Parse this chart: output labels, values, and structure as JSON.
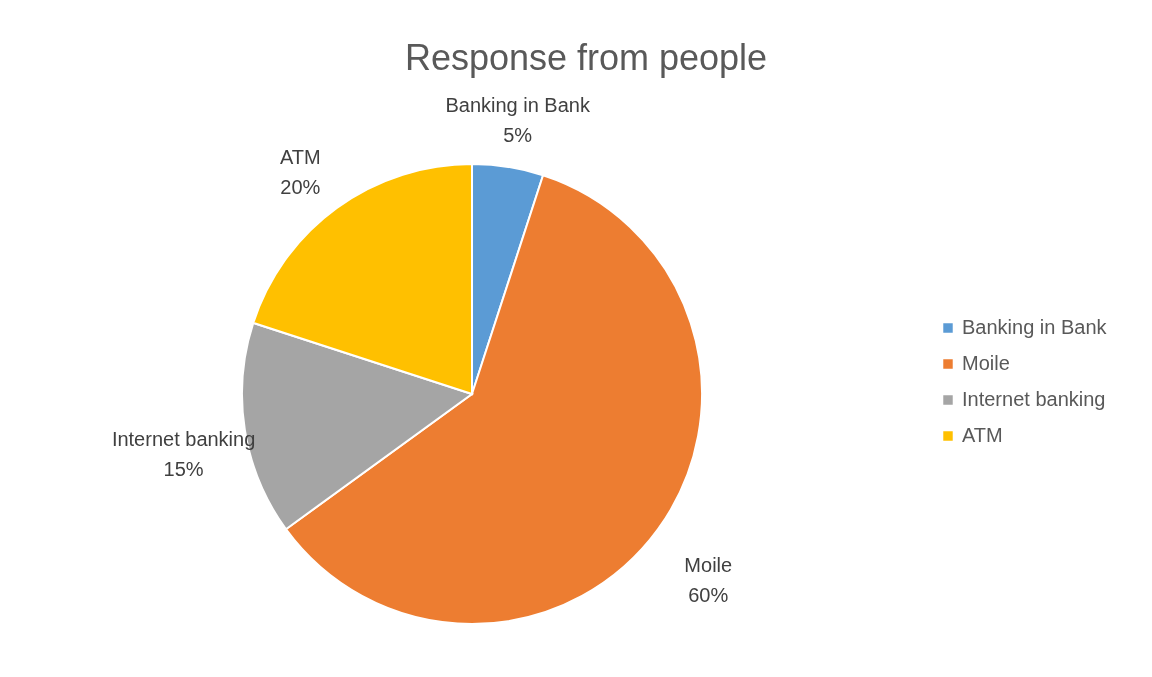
{
  "chart_data": {
    "type": "pie",
    "title": "Response from people",
    "categories": [
      "Banking in Bank",
      "Moile",
      "Internet banking",
      "ATM"
    ],
    "values": [
      5,
      60,
      15,
      20
    ],
    "value_labels": [
      "5%",
      "60%",
      "15%",
      "20%"
    ],
    "colors": [
      "#5b9bd5",
      "#ed7d31",
      "#a5a5a5",
      "#ffc000"
    ],
    "legend": "right"
  }
}
